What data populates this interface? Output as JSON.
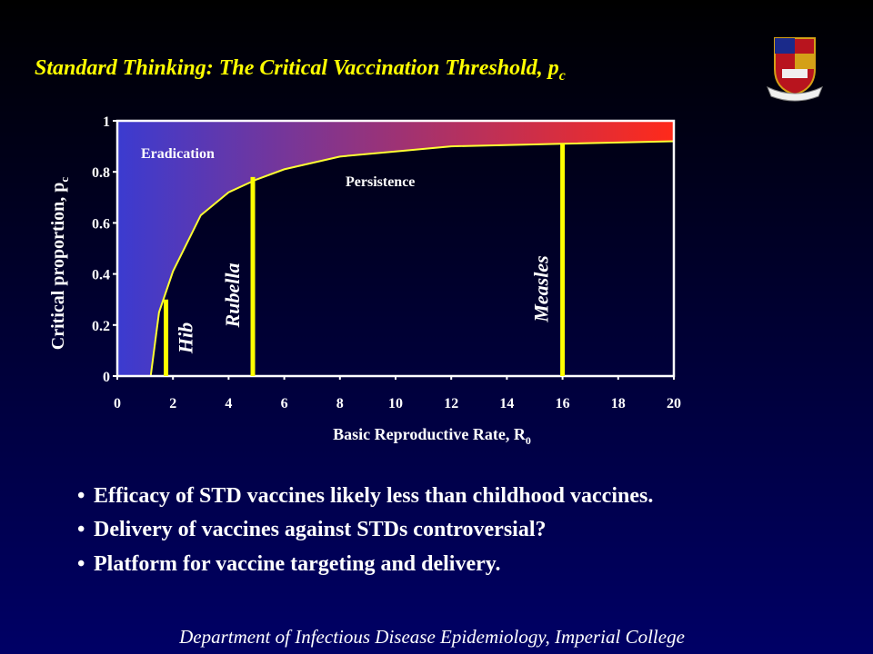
{
  "title": "Standard Thinking: The Critical Vaccination Threshold, p",
  "title_subscript": "c",
  "chart_data": {
    "type": "line",
    "x_label": "Basic Reproductive Rate, R",
    "x_label_subscript": "0",
    "y_label": "Critical proportion, p",
    "y_label_subscript": "c",
    "x": [
      1.2,
      1.5,
      2,
      3,
      4,
      5,
      6,
      8,
      10,
      12,
      16,
      20
    ],
    "series": [
      {
        "color": "#ffff33",
        "values": [
          0,
          0.25,
          0.41,
          0.63,
          0.72,
          0.77,
          0.81,
          0.86,
          0.88,
          0.9,
          0.91,
          0.92
        ]
      }
    ],
    "area_colors": [
      "#3b3bd0",
      "#ff2a1a"
    ],
    "markers": [
      {
        "name": "Hib",
        "x": 1.75,
        "value": 0.3
      },
      {
        "name": "Rubella",
        "x": 4.87,
        "value": 0.78
      },
      {
        "name": "Measles",
        "x": 16,
        "value": 0.91
      }
    ],
    "marker_color": "#ffff00",
    "annotations": [
      "Eradication",
      "Persistence"
    ],
    "xlim": [
      0,
      20
    ],
    "ylim": [
      0,
      1
    ],
    "xticks": [
      0,
      2,
      4,
      6,
      8,
      10,
      12,
      14,
      16,
      18,
      20
    ],
    "yticks": [
      0,
      0.2,
      0.4,
      0.6,
      0.8,
      1
    ]
  },
  "bullets": [
    "Efficacy of STD vaccines likely less than childhood vaccines.",
    "Delivery of vaccines against STDs controversial?",
    "Platform for vaccine targeting and delivery."
  ],
  "footer": "Department of Infectious Disease Epidemiology, Imperial College"
}
